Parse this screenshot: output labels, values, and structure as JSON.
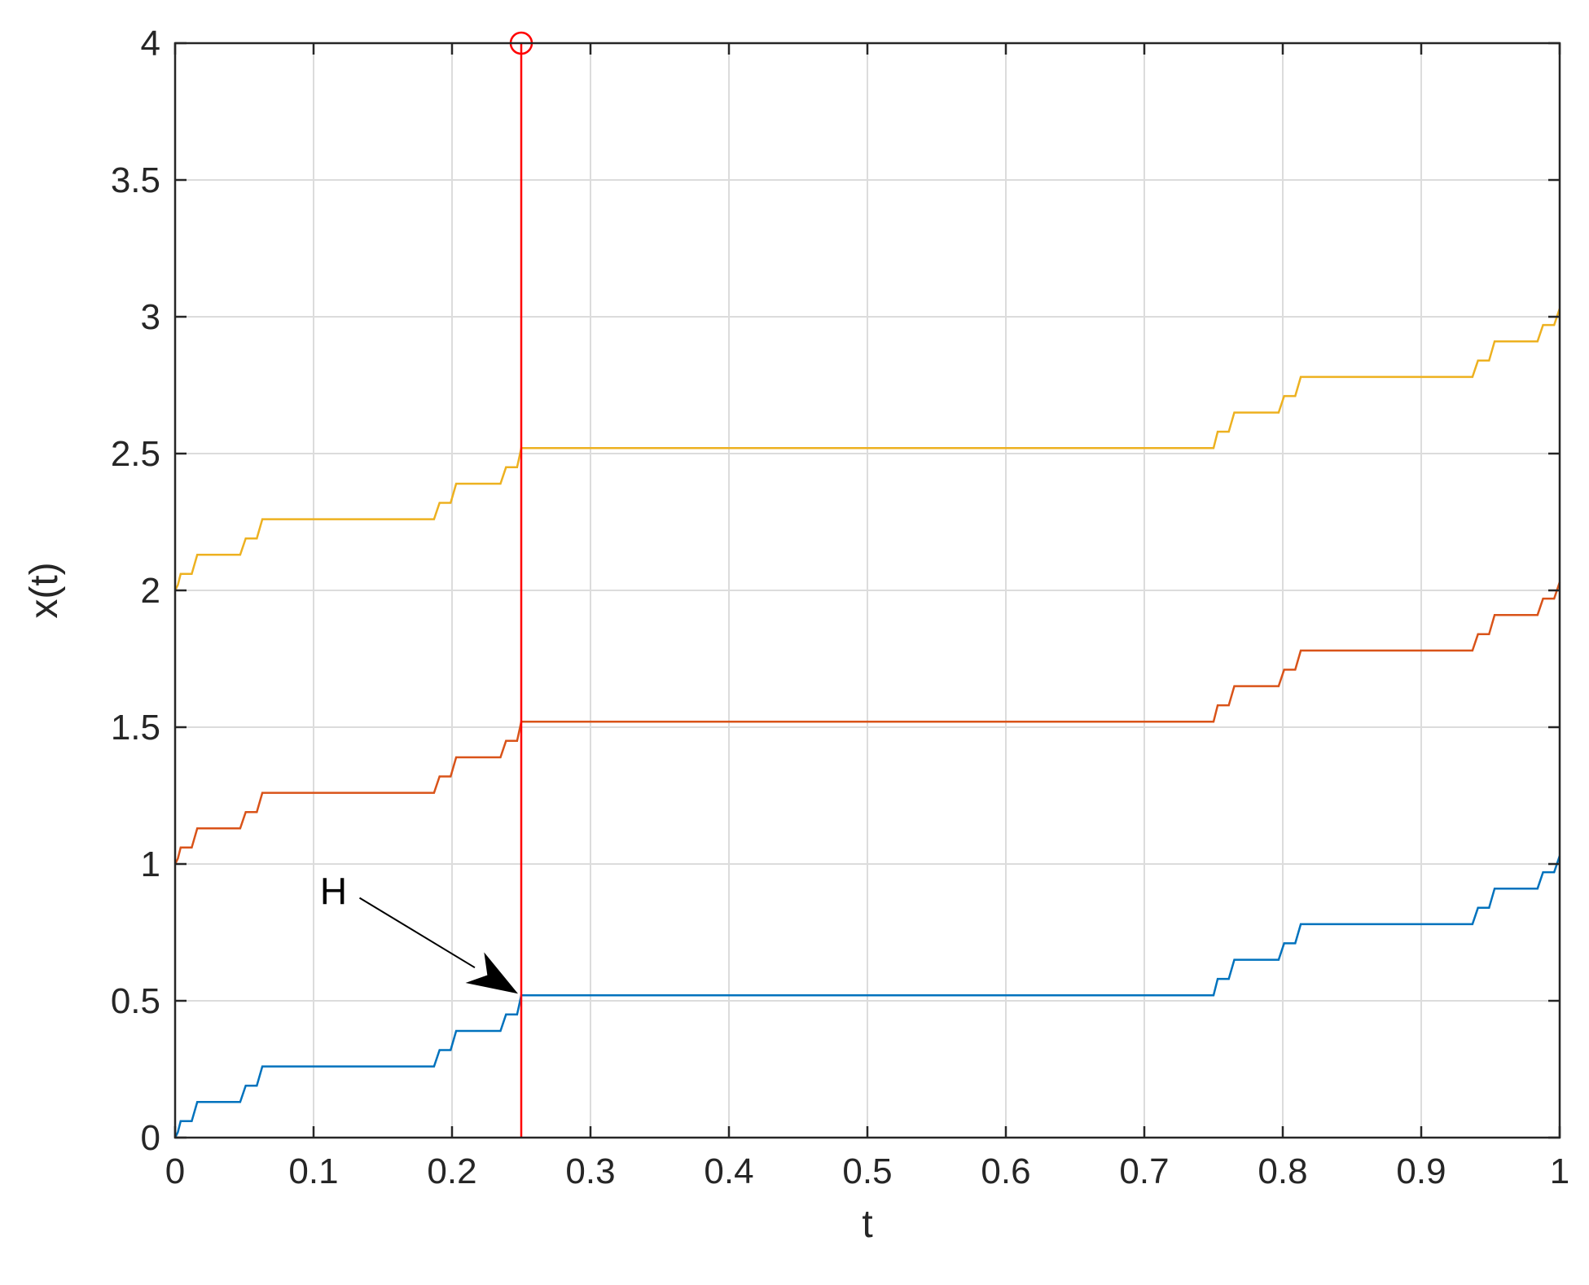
{
  "chart_data": {
    "type": "line",
    "title": "",
    "xlabel": "t",
    "ylabel": "x(t)",
    "xlim": [
      0,
      1
    ],
    "ylim": [
      0,
      4
    ],
    "xticks": [
      0,
      0.1,
      0.2,
      0.3,
      0.4,
      0.5,
      0.6,
      0.7,
      0.8,
      0.9,
      1
    ],
    "xtick_labels": [
      "0",
      "0.1",
      "0.2",
      "0.3",
      "0.4",
      "0.5",
      "0.6",
      "0.7",
      "0.8",
      "0.9",
      "1"
    ],
    "yticks": [
      0,
      0.5,
      1,
      1.5,
      2,
      2.5,
      3,
      3.5,
      4
    ],
    "ytick_labels": [
      "0",
      "0.5",
      "1",
      "1.5",
      "2",
      "2.5",
      "3",
      "3.5",
      "4"
    ],
    "grid": true,
    "colors": {
      "series1": "#0072BD",
      "series2": "#D95319",
      "series3": "#EDB120",
      "marker": "#FF0000",
      "arrow": "#000000"
    },
    "series": [
      {
        "x": [
          0,
          0.002,
          0.004,
          0.012,
          0.016,
          0.047,
          0.051,
          0.059,
          0.063,
          0.187,
          0.191,
          0.199,
          0.203,
          0.235,
          0.239,
          0.247,
          0.25,
          0.75,
          0.753,
          0.761,
          0.765,
          0.797,
          0.801,
          0.809,
          0.813,
          0.937,
          0.941,
          0.949,
          0.953,
          0.984,
          0.988,
          0.996,
          1
        ],
        "y": [
          0,
          0.02,
          0.06,
          0.06,
          0.13,
          0.13,
          0.19,
          0.19,
          0.26,
          0.26,
          0.32,
          0.32,
          0.39,
          0.39,
          0.45,
          0.45,
          0.52,
          0.52,
          0.58,
          0.58,
          0.65,
          0.65,
          0.71,
          0.71,
          0.78,
          0.78,
          0.84,
          0.84,
          0.91,
          0.91,
          0.97,
          0.97,
          1.03
        ]
      },
      {
        "x": [
          0,
          0.002,
          0.004,
          0.012,
          0.016,
          0.047,
          0.051,
          0.059,
          0.063,
          0.187,
          0.191,
          0.199,
          0.203,
          0.235,
          0.239,
          0.247,
          0.25,
          0.75,
          0.753,
          0.761,
          0.765,
          0.797,
          0.801,
          0.809,
          0.813,
          0.937,
          0.941,
          0.949,
          0.953,
          0.984,
          0.988,
          0.996,
          1
        ],
        "y": [
          1,
          1.02,
          1.06,
          1.06,
          1.13,
          1.13,
          1.19,
          1.19,
          1.26,
          1.26,
          1.32,
          1.32,
          1.39,
          1.39,
          1.45,
          1.45,
          1.52,
          1.52,
          1.58,
          1.58,
          1.65,
          1.65,
          1.71,
          1.71,
          1.78,
          1.78,
          1.84,
          1.84,
          1.91,
          1.91,
          1.97,
          1.97,
          2.03
        ]
      },
      {
        "x": [
          0,
          0.002,
          0.004,
          0.012,
          0.016,
          0.047,
          0.051,
          0.059,
          0.063,
          0.187,
          0.191,
          0.199,
          0.203,
          0.235,
          0.239,
          0.247,
          0.25,
          0.75,
          0.753,
          0.761,
          0.765,
          0.797,
          0.801,
          0.809,
          0.813,
          0.937,
          0.941,
          0.949,
          0.953,
          0.984,
          0.988,
          0.996,
          1
        ],
        "y": [
          2,
          2.02,
          2.06,
          2.06,
          2.13,
          2.13,
          2.19,
          2.19,
          2.26,
          2.26,
          2.32,
          2.32,
          2.39,
          2.39,
          2.45,
          2.45,
          2.52,
          2.52,
          2.58,
          2.58,
          2.65,
          2.65,
          2.71,
          2.71,
          2.78,
          2.78,
          2.84,
          2.84,
          2.91,
          2.91,
          2.97,
          2.97,
          3.03
        ]
      }
    ],
    "vertical_line": {
      "x": 0.25,
      "y_from": 0,
      "y_to": 4,
      "marker": "circle"
    },
    "annotations": [
      {
        "text": "H",
        "text_x": 0.125,
        "text_y": 0.9,
        "arrow_to_x": 0.25,
        "arrow_to_y": 0.52
      }
    ]
  }
}
